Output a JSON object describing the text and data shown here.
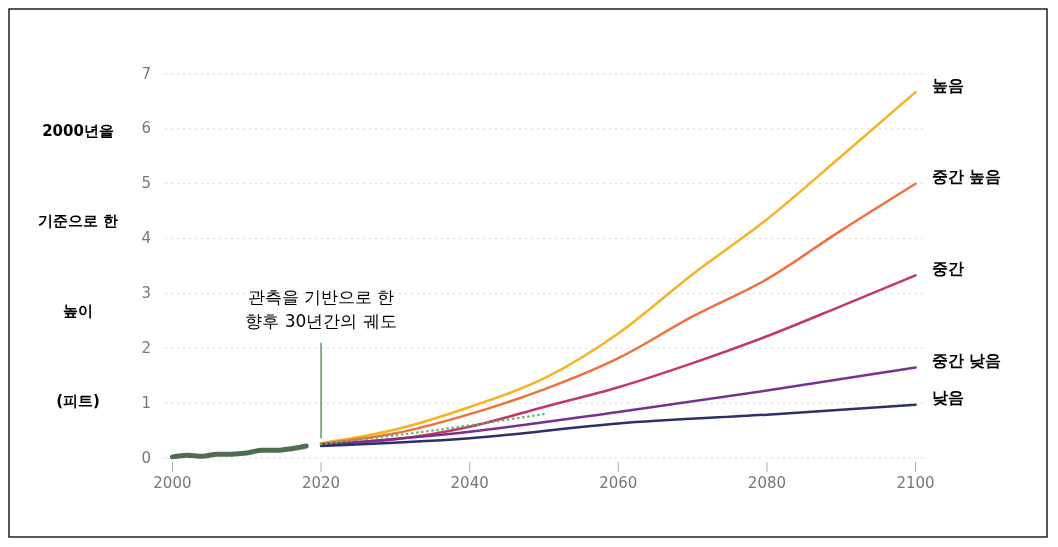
{
  "chart_data": {
    "type": "line",
    "ylabel": "2000년을\n기준으로 한\n높이\n(피트)",
    "xlim": [
      1999,
      2101
    ],
    "xticks": [
      2000,
      2020,
      2040,
      2060,
      2080,
      2100
    ],
    "ylim": [
      0,
      7
    ],
    "yticks": [
      0,
      1,
      2,
      3,
      4,
      5,
      6,
      7
    ],
    "grid": "y",
    "line_style": "solid",
    "annotations": [
      {
        "text": "관측을 기반으로 한\n향후 30년간의 궤도",
        "x": 2020,
        "y": 0.25
      }
    ],
    "series": [
      {
        "color": "#4f6e4f",
        "x": [
          2000,
          2002,
          2004,
          2006,
          2008,
          2010,
          2012,
          2014,
          2016,
          2018
        ],
        "values": [
          0.02,
          0.05,
          0.03,
          0.07,
          0.07,
          0.09,
          0.14,
          0.14,
          0.17,
          0.22
        ]
      },
      {
        "color": "#5cb85c",
        "line_style": "dotted",
        "x": [
          2020,
          2035,
          2050
        ],
        "values": [
          0.25,
          0.5,
          0.8
        ]
      },
      {
        "name": "높음",
        "color": "#f5b324",
        "x": [
          2020,
          2030,
          2040,
          2050,
          2060,
          2070,
          2080,
          2090,
          2100
        ],
        "values": [
          0.27,
          0.52,
          0.93,
          1.45,
          2.27,
          3.35,
          4.35,
          5.5,
          6.67
        ]
      },
      {
        "name": "중간 높음",
        "color": "#f0703c",
        "x": [
          2020,
          2030,
          2040,
          2050,
          2060,
          2070,
          2080,
          2090,
          2100
        ],
        "values": [
          0.26,
          0.45,
          0.8,
          1.25,
          1.82,
          2.58,
          3.26,
          4.15,
          5.0
        ]
      },
      {
        "name": "중간",
        "color": "#c2386e",
        "x": [
          2020,
          2030,
          2040,
          2050,
          2060,
          2070,
          2080,
          2090,
          2100
        ],
        "values": [
          0.25,
          0.34,
          0.57,
          0.93,
          1.29,
          1.73,
          2.22,
          2.77,
          3.33
        ]
      },
      {
        "name": "중간 낮음",
        "color": "#7a3090",
        "x": [
          2020,
          2040,
          2060,
          2080,
          2100
        ],
        "values": [
          0.24,
          0.48,
          0.84,
          1.23,
          1.65
        ]
      },
      {
        "name": "낮음",
        "color": "#2c2f6a",
        "x": [
          2020,
          2040,
          2060,
          2080,
          2100
        ],
        "values": [
          0.22,
          0.36,
          0.63,
          0.79,
          0.97
        ]
      }
    ]
  }
}
